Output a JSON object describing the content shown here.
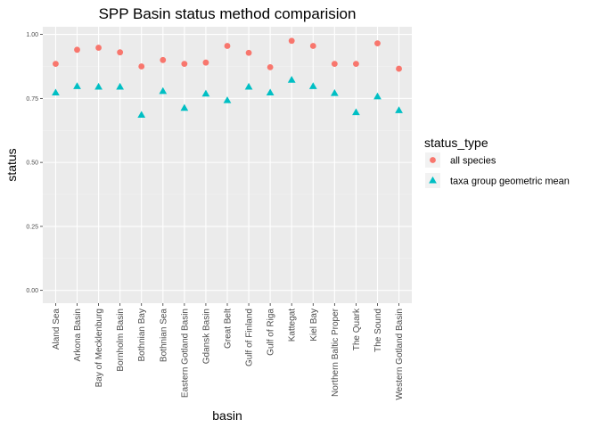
{
  "chart_data": {
    "type": "scatter",
    "title": "SPP Basin status method comparision",
    "xlabel": "basin",
    "ylabel": "status",
    "ylim": [
      -0.05,
      1.03
    ],
    "yticks": [
      0.0,
      0.25,
      0.5,
      0.75,
      1.0
    ],
    "ytick_labels": [
      "0.00",
      "0.25",
      "0.50",
      "0.75",
      "1.00"
    ],
    "grid": true,
    "legend_position": "right",
    "legend_title": "status_type",
    "categories": [
      "Aland Sea",
      "Arkona Basin",
      "Bay of Mecklenburg",
      "Bornholm Basin",
      "Bothnian Bay",
      "Bothnian Sea",
      "Eastern Gotland Basin",
      "Gdansk Basin",
      "Great Belt",
      "Gulf of Finland",
      "Gulf of Riga",
      "Kattegat",
      "Kiel Bay",
      "Northern Baltic Proper",
      "The Quark",
      "The Sound",
      "Western Gotland Basin"
    ],
    "series": [
      {
        "name": "all species",
        "marker": "circle",
        "color": "#F8766D",
        "values": [
          0.885,
          0.94,
          0.948,
          0.93,
          0.875,
          0.9,
          0.885,
          0.89,
          0.955,
          0.928,
          0.872,
          0.975,
          0.955,
          0.885,
          0.885,
          0.965,
          0.866
        ]
      },
      {
        "name": "taxa group geometric mean",
        "marker": "triangle",
        "color": "#00BFC4",
        "values": [
          0.772,
          0.797,
          0.795,
          0.795,
          0.685,
          0.778,
          0.712,
          0.768,
          0.742,
          0.795,
          0.772,
          0.822,
          0.797,
          0.77,
          0.695,
          0.757,
          0.703
        ]
      }
    ]
  }
}
